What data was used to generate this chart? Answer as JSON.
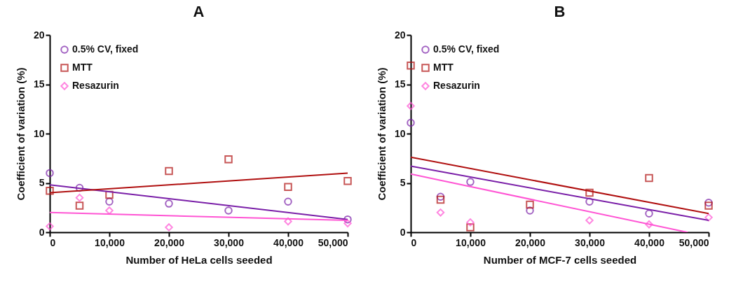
{
  "chart_data": [
    {
      "type": "scatter",
      "title": "A",
      "xlabel": "Number of HeLa cells seeded",
      "ylabel": "Coefficient of variation (%)",
      "xlim": [
        0,
        50000
      ],
      "xticks": [
        0,
        {
          "value": 10000,
          "label": "10,000"
        },
        {
          "value": 20000,
          "label": "20,000"
        },
        {
          "value": 30000,
          "label": "30,000"
        },
        {
          "value": 40000,
          "label": "40,000"
        },
        {
          "value": 50000,
          "label": "50,000"
        }
      ],
      "ylim": [
        0,
        20
      ],
      "yticks": [
        0,
        5,
        10,
        15,
        20
      ],
      "grid": false,
      "legend": "top left",
      "series": [
        {
          "name": "0.5% CV, fixed",
          "marker": "circle",
          "color": "#7a1fa8",
          "x": [
            0,
            5000,
            10000,
            20000,
            30000,
            40000,
            50000
          ],
          "values": [
            6.0,
            4.5,
            3.1,
            2.9,
            2.2,
            3.1,
            1.3
          ]
        },
        {
          "name": "MTT",
          "marker": "square",
          "color": "#b01010",
          "x": [
            0,
            5000,
            10000,
            20000,
            30000,
            40000,
            50000
          ],
          "values": [
            4.2,
            2.7,
            3.8,
            6.2,
            7.4,
            4.6,
            5.2
          ]
        },
        {
          "name": "Resazurin",
          "marker": "diamond",
          "color": "#ff55d4",
          "x": [
            0,
            5000,
            10000,
            20000,
            40000,
            50000
          ],
          "values": [
            0.6,
            3.5,
            2.2,
            0.5,
            1.1,
            0.9
          ]
        },
        {
          "type": "line",
          "color": "#7a1fa8",
          "x": [
            0,
            50000
          ],
          "values": [
            4.8,
            1.3
          ]
        },
        {
          "type": "line",
          "color": "#b01010",
          "x": [
            0,
            50000
          ],
          "values": [
            4.0,
            6.0
          ]
        },
        {
          "type": "line",
          "color": "#ff55d4",
          "x": [
            0,
            50000
          ],
          "values": [
            2.0,
            1.2
          ]
        }
      ]
    },
    {
      "type": "scatter",
      "title": "B",
      "xlabel": "Number of MCF-7 cells seeded",
      "ylabel": "Coefficient of variation (%)",
      "xlim": [
        0,
        50000
      ],
      "xticks": [
        0,
        {
          "value": 10000,
          "label": "10,000"
        },
        {
          "value": 20000,
          "label": "20,000"
        },
        {
          "value": 30000,
          "label": "30,000"
        },
        {
          "value": 40000,
          "label": "40,000"
        },
        {
          "value": 50000,
          "label": "50,000"
        }
      ],
      "ylim": [
        0,
        20
      ],
      "yticks": [
        0,
        5,
        10,
        15,
        20
      ],
      "grid": false,
      "legend": "top left",
      "series": [
        {
          "name": "0.5% CV, fixed",
          "marker": "circle",
          "color": "#7a1fa8",
          "x": [
            0,
            5000,
            10000,
            20000,
            30000,
            40000,
            50000
          ],
          "values": [
            11.1,
            3.6,
            5.1,
            2.2,
            3.1,
            1.9,
            3.0
          ]
        },
        {
          "name": "MTT",
          "marker": "square",
          "color": "#b01010",
          "x": [
            0,
            5000,
            10000,
            20000,
            30000,
            40000,
            50000
          ],
          "values": [
            16.9,
            3.3,
            0.5,
            2.8,
            4.0,
            5.5,
            2.7
          ]
        },
        {
          "name": "Resazurin",
          "marker": "diamond",
          "color": "#ff55d4",
          "x": [
            0,
            5000,
            10000,
            30000,
            40000,
            50000
          ],
          "values": [
            12.8,
            2.0,
            1.0,
            1.2,
            0.8,
            1.5
          ]
        },
        {
          "type": "line",
          "color": "#7a1fa8",
          "x": [
            0,
            50000
          ],
          "values": [
            6.7,
            1.2
          ]
        },
        {
          "type": "line",
          "color": "#b01010",
          "x": [
            0,
            50000
          ],
          "values": [
            7.6,
            1.9
          ]
        },
        {
          "type": "line",
          "color": "#ff55d4",
          "x": [
            0,
            46400
          ],
          "values": [
            5.9,
            0
          ]
        }
      ]
    }
  ]
}
